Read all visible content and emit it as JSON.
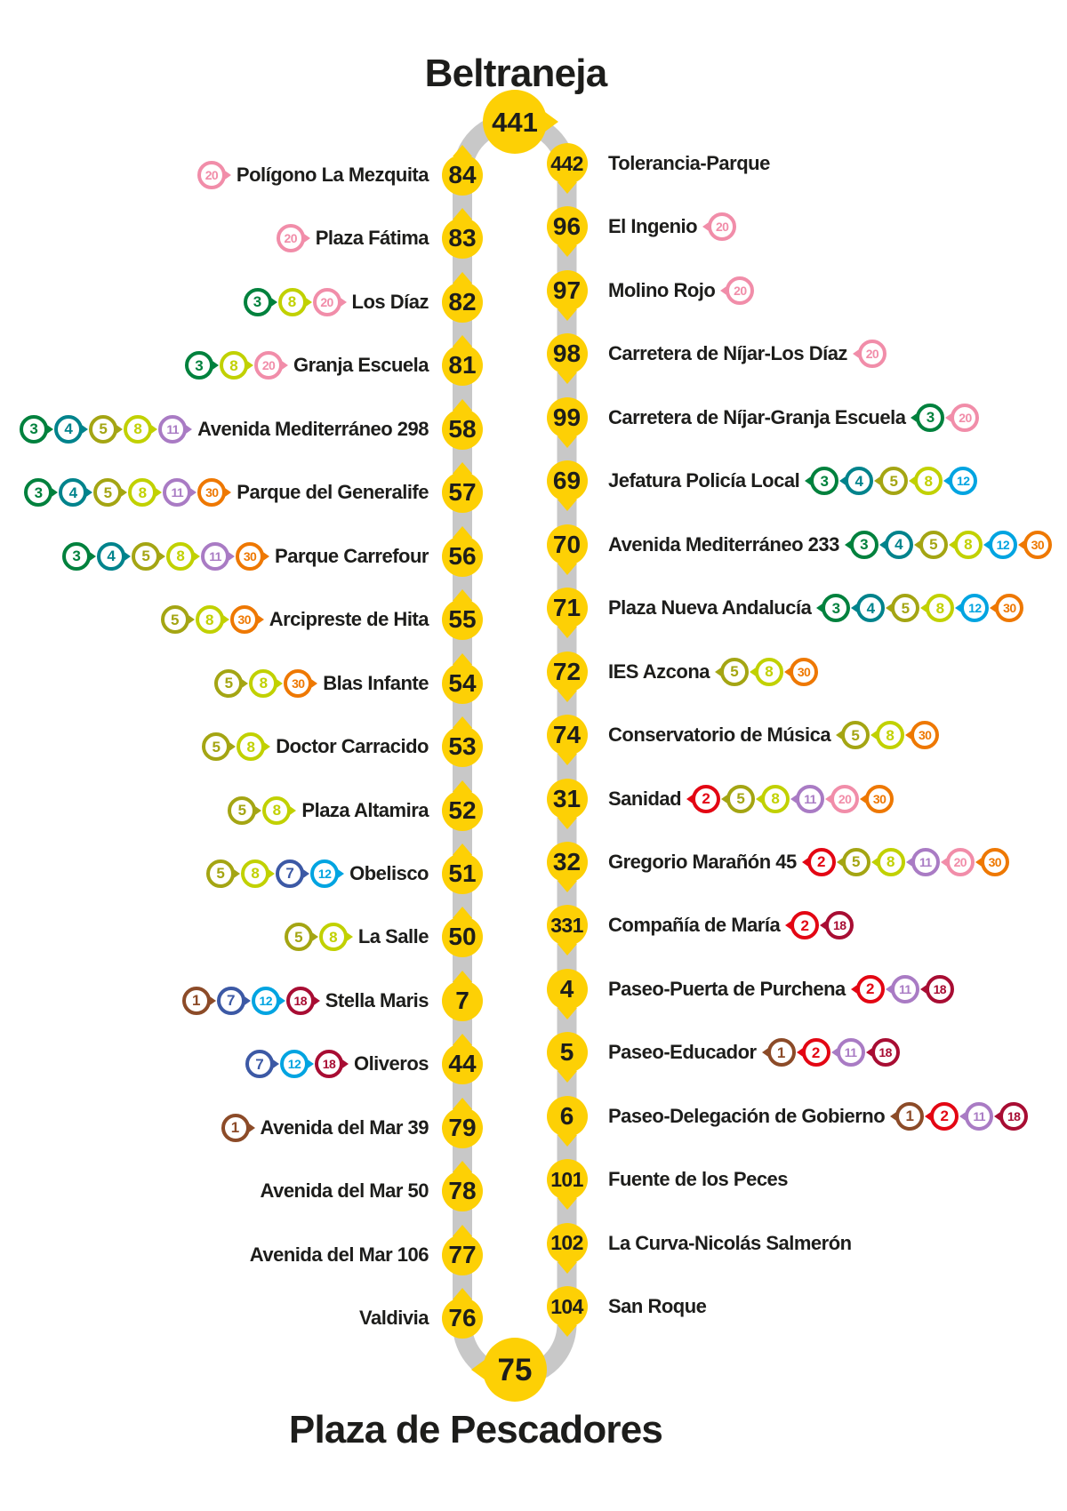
{
  "titles": {
    "top": "Beltraneja",
    "bottom": "Plaza de Pescadores"
  },
  "terminals": {
    "top_number": "441",
    "bottom_number": "75"
  },
  "colors": {
    "stop_fill": "#FDD005",
    "stop_text": "#1D1D1B",
    "track": "#C8C8C8",
    "lines": {
      "1": "#8C4B28",
      "2": "#E30613",
      "3": "#00813D",
      "4": "#00838C",
      "5": "#A4A513",
      "7": "#3C59A5",
      "8": "#C1D100",
      "11": "#A97BC4",
      "12": "#00A4E1",
      "18": "#A80D33",
      "20": "#F18DA9",
      "30": "#EE7802"
    }
  },
  "left_stops": [
    {
      "number": "84",
      "name": "Polígono La Mezquita",
      "lines": [
        "20"
      ]
    },
    {
      "number": "83",
      "name": "Plaza Fátima",
      "lines": [
        "20"
      ]
    },
    {
      "number": "82",
      "name": "Los Díaz",
      "lines": [
        "3",
        "8",
        "20"
      ]
    },
    {
      "number": "81",
      "name": "Granja Escuela",
      "lines": [
        "3",
        "8",
        "20"
      ]
    },
    {
      "number": "58",
      "name": "Avenida Mediterráneo 298",
      "lines": [
        "3",
        "4",
        "5",
        "8",
        "11"
      ]
    },
    {
      "number": "57",
      "name": "Parque del Generalife",
      "lines": [
        "3",
        "4",
        "5",
        "8",
        "11",
        "30"
      ]
    },
    {
      "number": "56",
      "name": "Parque Carrefour",
      "lines": [
        "3",
        "4",
        "5",
        "8",
        "11",
        "30"
      ]
    },
    {
      "number": "55",
      "name": "Arcipreste de Hita",
      "lines": [
        "5",
        "8",
        "30"
      ]
    },
    {
      "number": "54",
      "name": "Blas Infante",
      "lines": [
        "5",
        "8",
        "30"
      ]
    },
    {
      "number": "53",
      "name": "Doctor Carracido",
      "lines": [
        "5",
        "8"
      ]
    },
    {
      "number": "52",
      "name": "Plaza Altamira",
      "lines": [
        "5",
        "8"
      ]
    },
    {
      "number": "51",
      "name": "Obelisco",
      "lines": [
        "5",
        "8",
        "7",
        "12"
      ]
    },
    {
      "number": "50",
      "name": "La Salle",
      "lines": [
        "5",
        "8"
      ]
    },
    {
      "number": "7",
      "name": "Stella Maris",
      "lines": [
        "1",
        "7",
        "12",
        "18"
      ]
    },
    {
      "number": "44",
      "name": "Oliveros",
      "lines": [
        "7",
        "12",
        "18"
      ]
    },
    {
      "number": "79",
      "name": "Avenida del Mar 39",
      "lines": [
        "1"
      ]
    },
    {
      "number": "78",
      "name": "Avenida del Mar 50",
      "lines": []
    },
    {
      "number": "77",
      "name": "Avenida del Mar 106",
      "lines": []
    },
    {
      "number": "76",
      "name": "Valdivia",
      "lines": []
    }
  ],
  "right_stops": [
    {
      "number": "442",
      "name": "Tolerancia-Parque",
      "lines": []
    },
    {
      "number": "96",
      "name": "El Ingenio",
      "lines": [
        "20"
      ]
    },
    {
      "number": "97",
      "name": "Molino Rojo",
      "lines": [
        "20"
      ]
    },
    {
      "number": "98",
      "name": "Carretera de Níjar-Los Díaz",
      "lines": [
        "20"
      ]
    },
    {
      "number": "99",
      "name": "Carretera de Níjar-Granja Escuela",
      "lines": [
        "3",
        "20"
      ]
    },
    {
      "number": "69",
      "name": "Jefatura Policía Local",
      "lines": [
        "3",
        "4",
        "5",
        "8",
        "12"
      ]
    },
    {
      "number": "70",
      "name": "Avenida Mediterráneo 233",
      "lines": [
        "3",
        "4",
        "5",
        "8",
        "12",
        "30"
      ]
    },
    {
      "number": "71",
      "name": "Plaza Nueva Andalucía",
      "lines": [
        "3",
        "4",
        "5",
        "8",
        "12",
        "30"
      ]
    },
    {
      "number": "72",
      "name": "IES Azcona",
      "lines": [
        "5",
        "8",
        "30"
      ]
    },
    {
      "number": "74",
      "name": "Conservatorio de Música",
      "lines": [
        "5",
        "8",
        "30"
      ]
    },
    {
      "number": "31",
      "name": "Sanidad",
      "lines": [
        "2",
        "5",
        "8",
        "11",
        "20",
        "30"
      ]
    },
    {
      "number": "32",
      "name": "Gregorio Marañón 45",
      "lines": [
        "2",
        "5",
        "8",
        "11",
        "20",
        "30"
      ]
    },
    {
      "number": "331",
      "name": "Compañía de María",
      "lines": [
        "2",
        "18"
      ]
    },
    {
      "number": "4",
      "name": "Paseo-Puerta de Purchena",
      "lines": [
        "2",
        "11",
        "18"
      ]
    },
    {
      "number": "5",
      "name": "Paseo-Educador",
      "lines": [
        "1",
        "2",
        "11",
        "18"
      ]
    },
    {
      "number": "6",
      "name": "Paseo-Delegación de Gobierno",
      "lines": [
        "1",
        "2",
        "11",
        "18"
      ]
    },
    {
      "number": "101",
      "name": "Fuente de los Peces",
      "lines": []
    },
    {
      "number": "102",
      "name": "La Curva-Nicolás Salmerón",
      "lines": []
    },
    {
      "number": "104",
      "name": "San Roque",
      "lines": []
    }
  ]
}
